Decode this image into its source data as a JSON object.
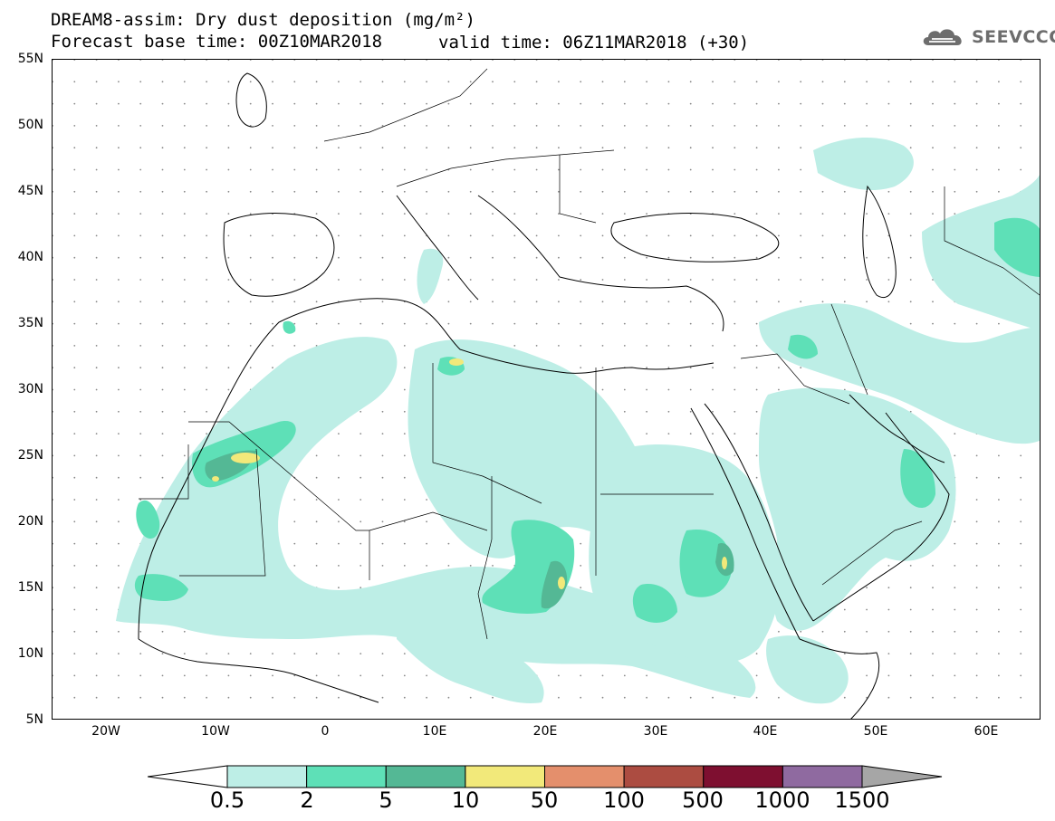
{
  "header": {
    "title_line1": "DREAM8-assim: Dry dust deposition (mg/m²)",
    "title_line2": "Forecast base time: 00Z10MAR2018",
    "valid_time": "valid time: 06Z11MAR2018 (+30)",
    "logo_text": "SEEVCCC",
    "logo_icon": "cloud-icon"
  },
  "map": {
    "region": "North Africa, Middle East and Europe",
    "lon_range": [
      -25,
      65
    ],
    "lat_range": [
      5,
      55
    ],
    "lat_labels": [
      "55N",
      "50N",
      "45N",
      "40N",
      "35N",
      "30N",
      "25N",
      "20N",
      "15N",
      "10N",
      "5N"
    ],
    "lon_labels": [
      "20W",
      "10W",
      "0",
      "10E",
      "20E",
      "30E",
      "40E",
      "50E",
      "60E"
    ],
    "grid_dots": true,
    "colors": {
      "level_1": "#bdeee6",
      "level_2": "#5ee0b7",
      "level_3": "#54b895",
      "level_4": "#f2e97a"
    }
  },
  "colorbar": {
    "labels": [
      "0.5",
      "2",
      "5",
      "10",
      "50",
      "100",
      "500",
      "1000",
      "1500"
    ],
    "colors": [
      "#bdeee6",
      "#5ee0b7",
      "#54b895",
      "#f2e97a",
      "#e48f6c",
      "#ac4c41",
      "#7e0f30",
      "#8f6aa0"
    ],
    "under_color": "#ffffff",
    "over_color": "#a6a6a6"
  }
}
